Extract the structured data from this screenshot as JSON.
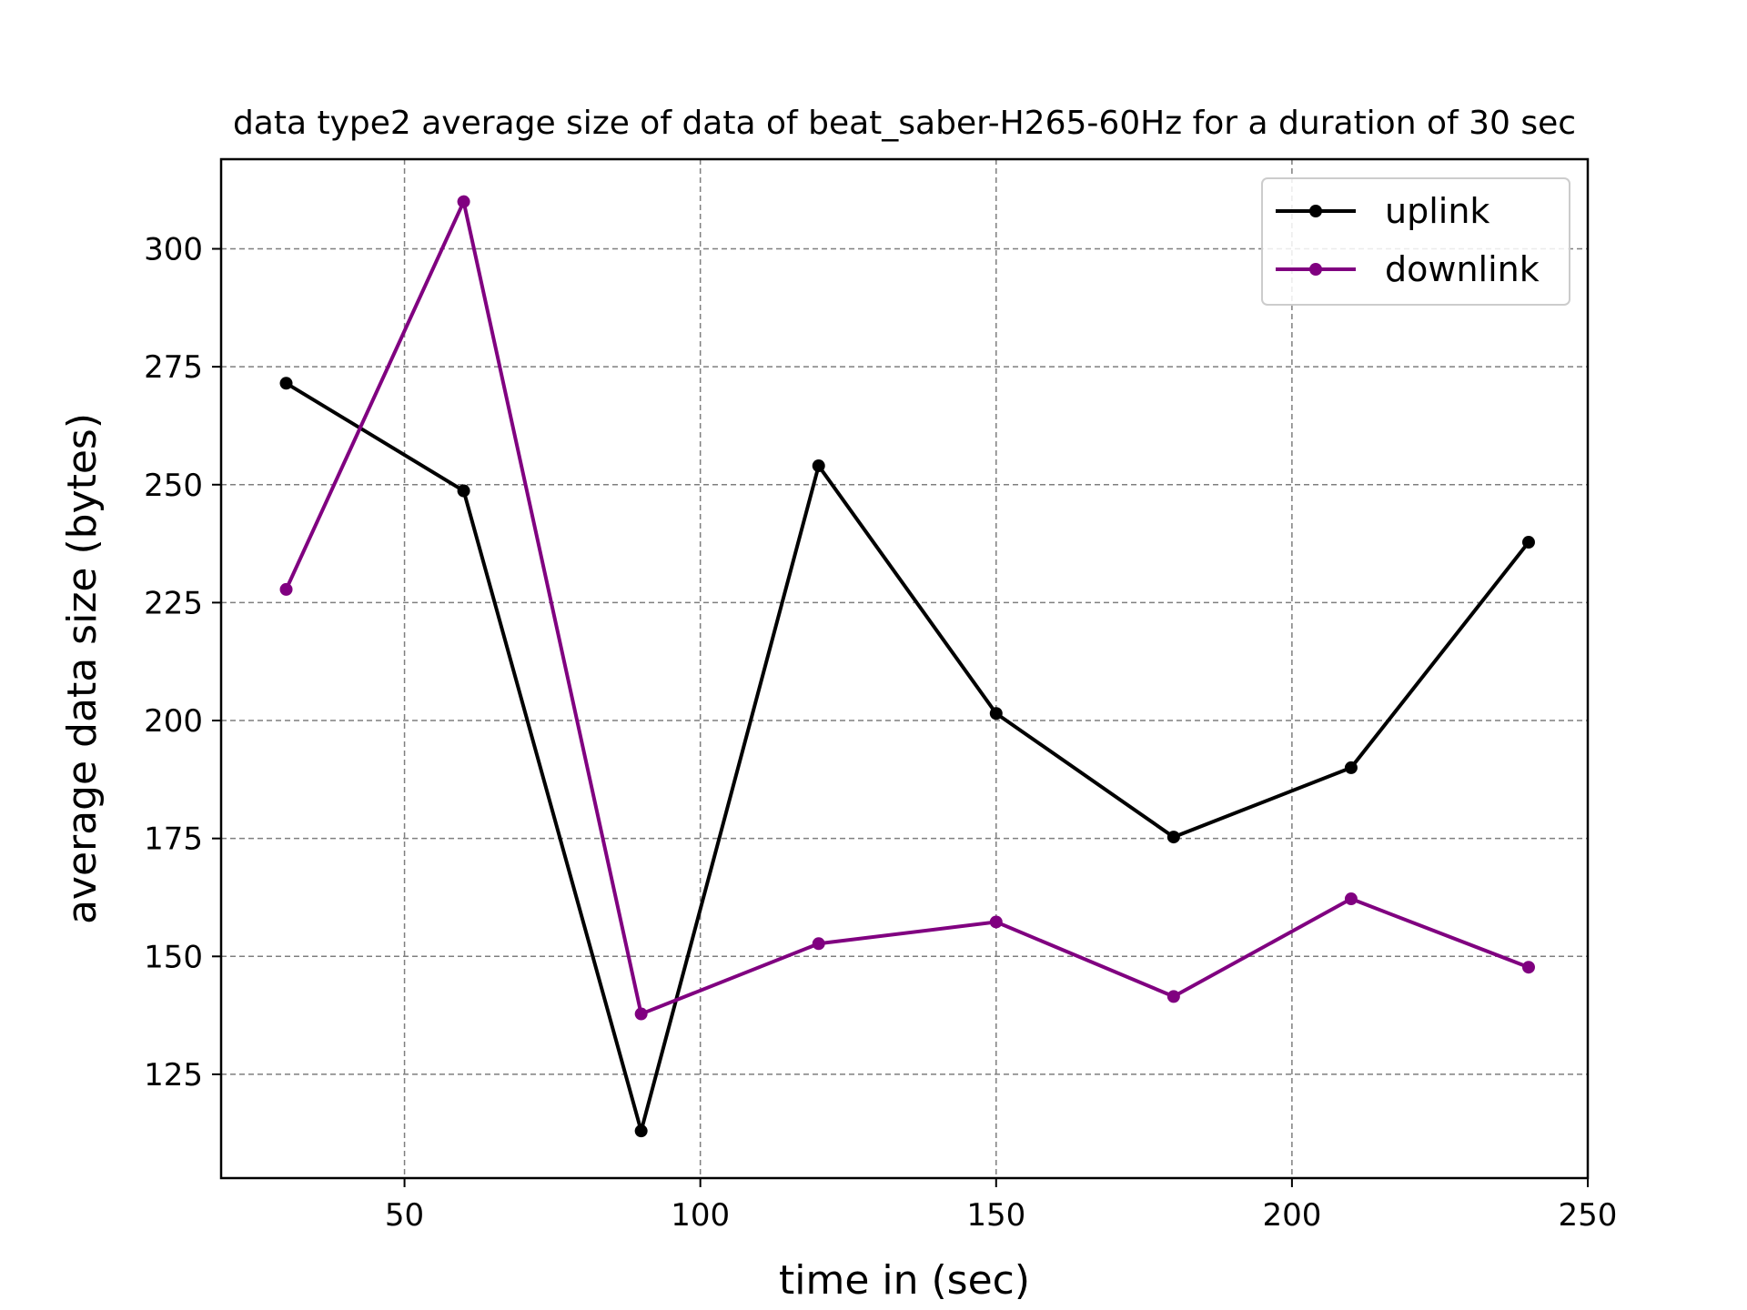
{
  "chart_data": {
    "type": "line",
    "title": "data type2 average size of data of beat_saber-H265-60Hz for a duration of 30 sec",
    "xlabel": "time in (sec)",
    "ylabel": "average data size (bytes)",
    "xlim": [
      19,
      250
    ],
    "ylim": [
      103,
      319
    ],
    "xticks": [
      50,
      100,
      150,
      200,
      250
    ],
    "yticks": [
      125,
      150,
      175,
      200,
      225,
      250,
      275,
      300
    ],
    "grid": true,
    "legend_position": "top-right",
    "x": [
      30,
      60,
      90,
      120,
      150,
      180,
      210,
      240
    ],
    "series": [
      {
        "name": "uplink",
        "color": "#000000",
        "values": [
          271.5,
          248.7,
          113.0,
          254.0,
          201.5,
          175.3,
          190.0,
          237.8
        ]
      },
      {
        "name": "downlink",
        "color": "#800080",
        "values": [
          227.8,
          310.0,
          137.8,
          152.7,
          157.3,
          141.5,
          162.2,
          147.7
        ]
      }
    ]
  }
}
